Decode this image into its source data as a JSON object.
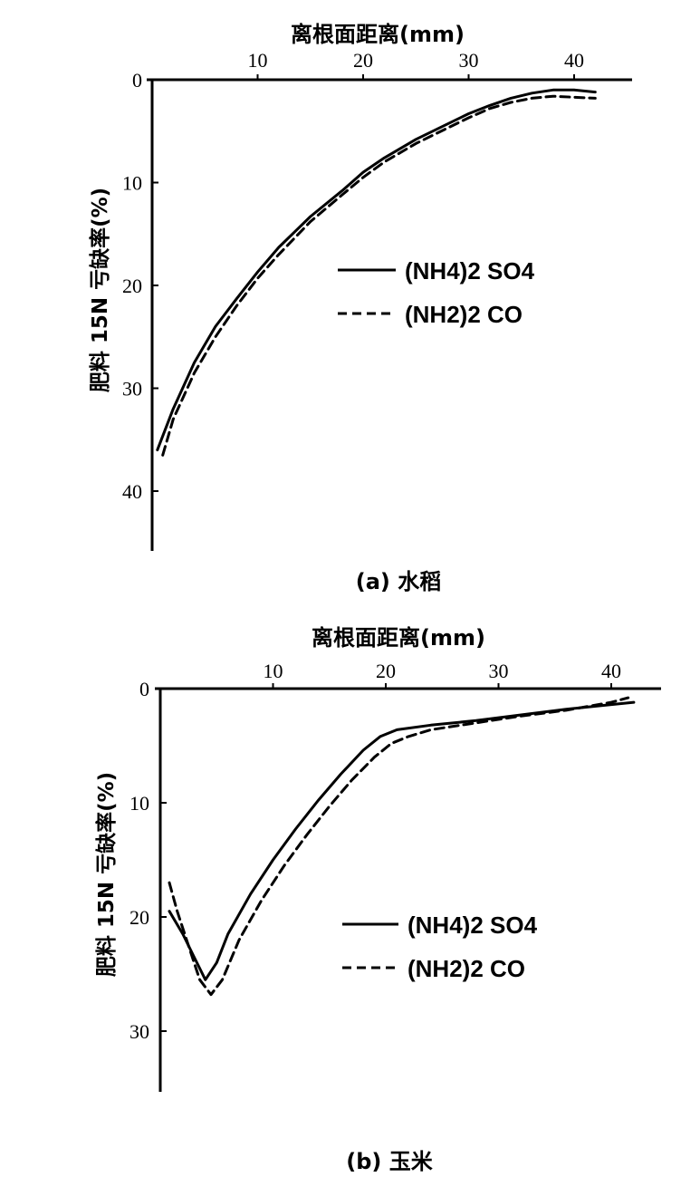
{
  "chart_data": [
    {
      "type": "line",
      "caption": "(a) 水稻",
      "xlabel": "离根面距离(mm)",
      "ylabel": "肥料 15N 亏缺率(%)",
      "xlim": [
        0,
        45
      ],
      "ylim": [
        0,
        45
      ],
      "y_inverted": true,
      "x_axis_position": "top",
      "xticks": [
        "10",
        "20",
        "30",
        "40"
      ],
      "xtick_values": [
        10,
        20,
        30,
        40
      ],
      "yticks": [
        "0",
        "10",
        "20",
        "30",
        "40"
      ],
      "ytick_values": [
        0,
        10,
        20,
        30,
        40
      ],
      "legend_position": "center-right",
      "series": [
        {
          "name": "(NH4)2 SO4",
          "style": "solid",
          "x": [
            0.5,
            2,
            4,
            6,
            8,
            10,
            12,
            15,
            18,
            20,
            22,
            25,
            28,
            30,
            32,
            34,
            36,
            38,
            40,
            42
          ],
          "y": [
            36.0,
            32.0,
            27.5,
            24.0,
            21.3,
            18.7,
            16.3,
            13.3,
            10.8,
            9.0,
            7.6,
            5.8,
            4.3,
            3.3,
            2.5,
            1.8,
            1.3,
            1.0,
            1.0,
            1.2
          ]
        },
        {
          "name": "(NH2)2 CO",
          "style": "dashed",
          "x": [
            1,
            2,
            4,
            6,
            8,
            10,
            12,
            15,
            18,
            20,
            22,
            25,
            28,
            30,
            32,
            34,
            36,
            38,
            40,
            42
          ],
          "y": [
            36.5,
            33.0,
            28.5,
            25.0,
            22.0,
            19.3,
            17.0,
            13.8,
            11.2,
            9.5,
            8.0,
            6.2,
            4.7,
            3.7,
            2.8,
            2.2,
            1.8,
            1.6,
            1.7,
            1.8
          ]
        }
      ]
    },
    {
      "type": "line",
      "caption": "(b) 玉米",
      "xlabel": "离根面距离(mm)",
      "ylabel": "肥料 15N 亏缺率(%)",
      "xlim": [
        0,
        45
      ],
      "ylim": [
        0,
        35
      ],
      "y_inverted": true,
      "x_axis_position": "top",
      "xticks": [
        "10",
        "20",
        "30",
        "40"
      ],
      "xtick_values": [
        10,
        20,
        30,
        40
      ],
      "yticks": [
        "0",
        "10",
        "20",
        "30"
      ],
      "ytick_values": [
        0,
        10,
        20,
        30
      ],
      "legend_position": "bottom-right",
      "series": [
        {
          "name": "(NH4)2 SO4",
          "style": "solid",
          "x": [
            0.8,
            2,
            3,
            4,
            5,
            6,
            8,
            10,
            12,
            14,
            16,
            18,
            19.5,
            21,
            24,
            28,
            32,
            36,
            40,
            42
          ],
          "y": [
            19.5,
            21.5,
            23.5,
            25.5,
            24.0,
            21.5,
            18.0,
            15.0,
            12.3,
            9.8,
            7.5,
            5.4,
            4.2,
            3.6,
            3.2,
            2.8,
            2.3,
            1.8,
            1.4,
            1.2
          ]
        },
        {
          "name": "(NH2)2 CO",
          "style": "dashed",
          "x": [
            0.8,
            1.5,
            2.5,
            3.5,
            4.5,
            5.5,
            7,
            9,
            11,
            13,
            15,
            17,
            19,
            20.5,
            22,
            24,
            28,
            32,
            36,
            40,
            41.5
          ],
          "y": [
            17.0,
            19.5,
            22.5,
            25.5,
            26.8,
            25.5,
            22.0,
            18.5,
            15.5,
            12.8,
            10.3,
            8.0,
            6.0,
            4.8,
            4.2,
            3.6,
            3.0,
            2.4,
            1.9,
            1.2,
            0.8
          ]
        }
      ]
    }
  ]
}
